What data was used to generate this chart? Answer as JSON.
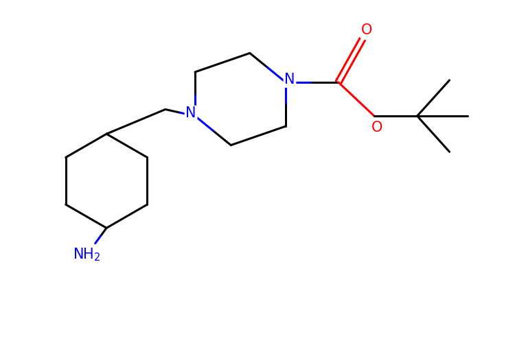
{
  "background_color": "#ffffff",
  "bond_color": "#000000",
  "n_color": "#0000ff",
  "o_color": "#ff0000",
  "line_width": 2.2,
  "font_size": 15,
  "figsize": [
    7.5,
    5.0
  ],
  "dpi": 100,
  "xlim": [
    0,
    10
  ],
  "ylim": [
    0,
    6.67
  ]
}
